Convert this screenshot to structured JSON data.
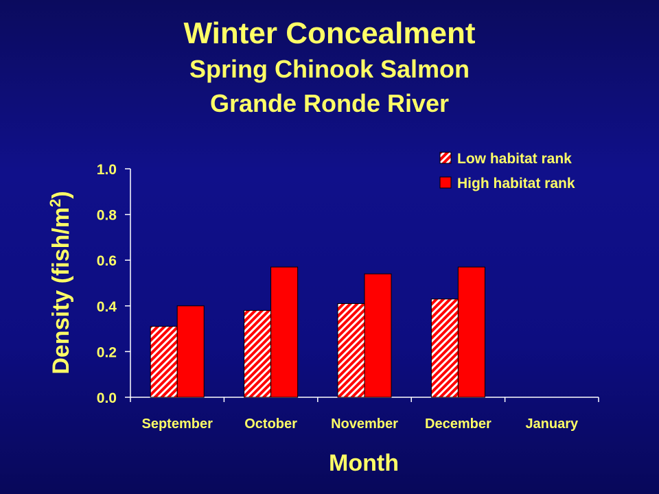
{
  "chart_data": {
    "type": "bar",
    "title": "Winter Concealment",
    "subtitle": "Spring Chinook Salmon",
    "subtitle2": "Grande Ronde River",
    "xlabel": "Month",
    "ylabel_prefix": "Density (fish/m",
    "ylabel_superscript": "2",
    "ylabel_suffix": ")",
    "categories": [
      "September",
      "October",
      "November",
      "December",
      "January"
    ],
    "series": [
      {
        "name": "Low habitat rank",
        "values": [
          0.31,
          0.38,
          0.41,
          0.43,
          null
        ],
        "color": "#ff0000",
        "pattern": "diagonal-hatch"
      },
      {
        "name": "High habitat rank",
        "values": [
          0.4,
          0.57,
          0.54,
          0.57,
          null
        ],
        "color": "#ff0000",
        "pattern": "solid"
      }
    ],
    "ylim": [
      0,
      1.0
    ],
    "yticks": [
      "0.0",
      "0.2",
      "0.4",
      "0.6",
      "0.8",
      "1.0"
    ],
    "ytick_values": [
      0,
      0.2,
      0.4,
      0.6,
      0.8,
      1.0
    ],
    "grid": false,
    "legend_position": "top-right",
    "colors": {
      "background": "#0d0d80",
      "text": "#ffff66",
      "axis": "#ffffff",
      "bar": "#ff0000"
    }
  }
}
